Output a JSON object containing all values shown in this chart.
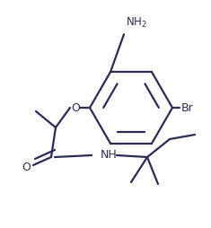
{
  "bg": "#ffffff",
  "lc": "#2b2b52",
  "lw": 1.6,
  "figsize": [
    2.35,
    2.54
  ],
  "dpi": 100,
  "xlim": [
    0,
    235
  ],
  "ylim": [
    0,
    254
  ]
}
